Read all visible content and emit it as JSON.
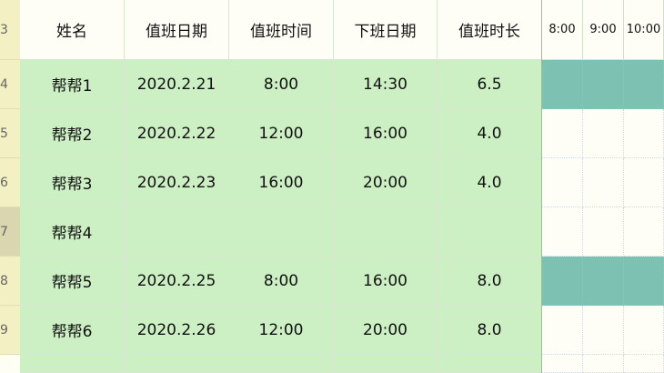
{
  "row_numbers": [
    "3",
    "4",
    "5",
    "6",
    "7",
    "8",
    "9"
  ],
  "selected_row": "7",
  "headers": [
    "姓名",
    "值班日期",
    "值班时间",
    "下班日期",
    "值班时长"
  ],
  "timeline_headers": [
    "8:00",
    "9:00",
    "10:00"
  ],
  "rows": [
    {
      "name": "帮帮1",
      "date": "2020.2.21",
      "start": "8:00",
      "end": "14:30",
      "hours": "6.5",
      "shaded": true
    },
    {
      "name": "帮帮2",
      "date": "2020.2.22",
      "start": "12:00",
      "end": "16:00",
      "hours": "4.0",
      "shaded": false
    },
    {
      "name": "帮帮3",
      "date": "2020.2.23",
      "start": "16:00",
      "end": "20:00",
      "hours": "4.0",
      "shaded": false
    },
    {
      "name": "帮帮4",
      "date": "",
      "start": "",
      "end": "",
      "hours": "",
      "shaded": false
    },
    {
      "name": "帮帮5",
      "date": "2020.2.25",
      "start": "8:00",
      "end": "16:00",
      "hours": "8.0",
      "shaded": true
    },
    {
      "name": "帮帮6",
      "date": "2020.2.26",
      "start": "12:00",
      "end": "20:00",
      "hours": "8.0",
      "shaded": false
    }
  ],
  "colors": {
    "data_fill": "#ccefc4",
    "timeline_fill": "#7dc1b3",
    "header_fill": "#fffef6"
  }
}
